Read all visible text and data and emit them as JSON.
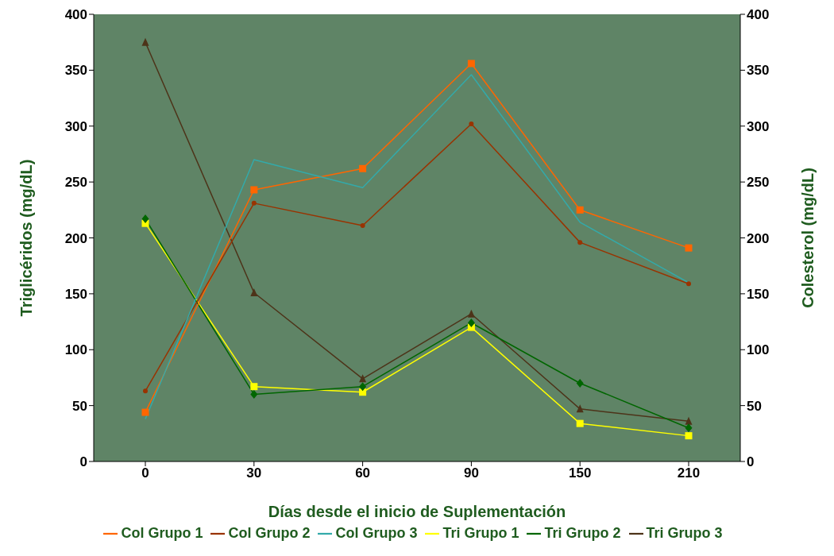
{
  "chart_data": {
    "type": "line",
    "xlabel": "Días desde el inicio de Suplementación",
    "ylabel": "Triglicéridos (mg/dL)",
    "y2label": "Colesterol (mg/dL)",
    "categories": [
      "0",
      "30",
      "60",
      "90",
      "150",
      "210"
    ],
    "ylim": [
      0,
      400
    ],
    "yticks": [
      0,
      50,
      100,
      150,
      200,
      250,
      300,
      350,
      400
    ],
    "y2lim": [
      0,
      400
    ],
    "y2ticks": [
      0,
      50,
      100,
      150,
      200,
      250,
      300,
      350,
      400
    ],
    "legend": "bottom",
    "series": [
      {
        "name": "Tri Grupo 1",
        "color": "#ffff00",
        "marker": "square",
        "values": [
          213,
          67,
          62,
          120,
          34,
          23
        ]
      },
      {
        "name": "Tri Grupo 3",
        "color": "#4d3319",
        "marker": "triangle",
        "values": [
          375,
          151,
          74,
          132,
          47,
          36
        ]
      },
      {
        "name": "Tri Grupo 2",
        "color": "#006600",
        "marker": "diamond",
        "values": [
          217,
          60,
          67,
          124,
          70,
          30
        ]
      },
      {
        "name": "Col Grupo 1",
        "color": "#ff6600",
        "marker": "square",
        "axis": "y2",
        "values": [
          44,
          243,
          262,
          356,
          225,
          191
        ]
      },
      {
        "name": "Col Grupo 2",
        "color": "#993300",
        "marker": "circle",
        "axis": "y2",
        "values": [
          63,
          231,
          211,
          302,
          196,
          159
        ]
      },
      {
        "name": "Col Grupo 3",
        "color": "#33aaaa",
        "marker": "none",
        "axis": "y2",
        "values": [
          38,
          270,
          245,
          346,
          214,
          160
        ]
      }
    ]
  }
}
